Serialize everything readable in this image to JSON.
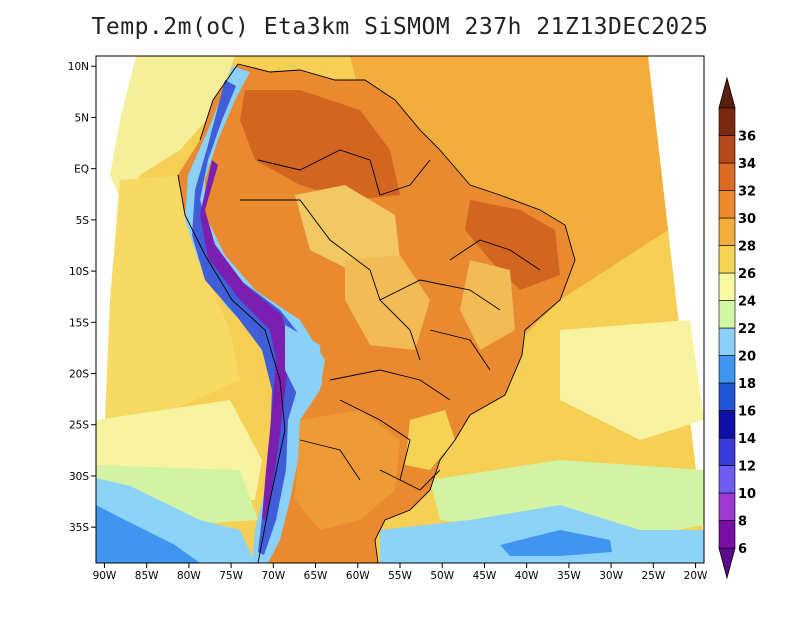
{
  "title": "Temp.2m(oC) Eta3km SiSMOM 237h 21Z13DEC2025",
  "map": {
    "lat_ticks": [
      "10N",
      "5N",
      "EQ",
      "5S",
      "10S",
      "15S",
      "20S",
      "25S",
      "30S",
      "35S"
    ],
    "lon_ticks": [
      "90W",
      "85W",
      "80W",
      "75W",
      "70W",
      "65W",
      "60W",
      "55W",
      "50W",
      "45W",
      "40W",
      "35W",
      "30W",
      "25W",
      "20W"
    ],
    "lon_range": [
      -91,
      -19
    ],
    "lat_range": [
      -38.5,
      11
    ]
  },
  "legend": {
    "labels": [
      "6",
      "8",
      "10",
      "12",
      "14",
      "16",
      "18",
      "20",
      "22",
      "24",
      "26",
      "28",
      "30",
      "32",
      "34",
      "36"
    ],
    "colors": [
      "#7a0fa8",
      "#9e3ad3",
      "#6f5cf0",
      "#3b3bd9",
      "#1010a8",
      "#1f56d6",
      "#3f95ef",
      "#8ad0f7",
      "#d2f7a4",
      "#f8f8a3",
      "#f5d355",
      "#f3ad3c",
      "#ed8a2e",
      "#dd6a22",
      "#b3481a",
      "#7a2a10"
    ],
    "min_color": "#5a0a8c",
    "max_color": "#5a200c"
  }
}
